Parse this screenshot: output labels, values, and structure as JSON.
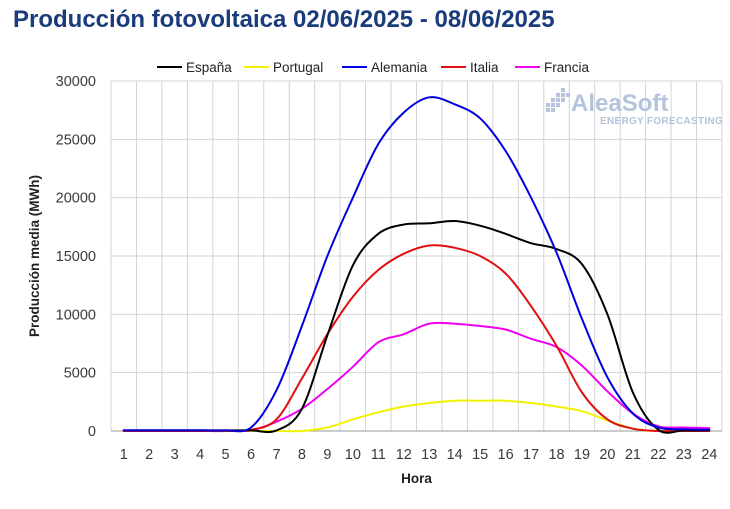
{
  "title": "Producción fotovoltaica 02/06/2025 - 08/06/2025",
  "watermark": {
    "brand": "AleaSoft",
    "tagline": "ENERGY FORECASTING"
  },
  "chart_data": {
    "type": "line",
    "xlabel": "Hora",
    "ylabel": "Producción media (MWh)",
    "x": [
      1,
      2,
      3,
      4,
      5,
      6,
      7,
      8,
      9,
      10,
      11,
      12,
      13,
      14,
      15,
      16,
      17,
      18,
      19,
      20,
      21,
      22,
      23,
      24
    ],
    "ylim": [
      0,
      30000
    ],
    "yticks": [
      0,
      5000,
      10000,
      15000,
      20000,
      25000,
      30000
    ],
    "grid": true,
    "legend_position": "top",
    "series": [
      {
        "name": "España",
        "color": "#000000",
        "values": [
          50,
          50,
          50,
          50,
          50,
          50,
          50,
          1900,
          8200,
          14200,
          16900,
          17700,
          17800,
          18000,
          17600,
          16900,
          16100,
          15600,
          14300,
          10000,
          3300,
          100,
          50,
          50
        ]
      },
      {
        "name": "Portugal",
        "color": "#f2f200",
        "values": [
          0,
          0,
          0,
          0,
          0,
          0,
          0,
          0,
          300,
          1000,
          1600,
          2100,
          2400,
          2600,
          2600,
          2600,
          2400,
          2100,
          1700,
          900,
          200,
          0,
          0,
          0
        ]
      },
      {
        "name": "Alemania",
        "color": "#0000e0",
        "values": [
          50,
          50,
          50,
          50,
          50,
          300,
          3500,
          9000,
          15000,
          20000,
          24600,
          27300,
          28600,
          28000,
          26800,
          24000,
          20000,
          15300,
          9600,
          4600,
          1500,
          300,
          150,
          100
        ]
      },
      {
        "name": "Italia",
        "color": "#e01010",
        "values": [
          0,
          0,
          0,
          0,
          0,
          100,
          1000,
          4500,
          8300,
          11500,
          13800,
          15200,
          15900,
          15700,
          15000,
          13500,
          10700,
          7300,
          3300,
          1000,
          200,
          0,
          0,
          0
        ]
      },
      {
        "name": "Francia",
        "color": "#f000f0",
        "values": [
          50,
          50,
          50,
          50,
          50,
          50,
          800,
          1900,
          3600,
          5500,
          7600,
          8300,
          9200,
          9200,
          9000,
          8700,
          7900,
          7200,
          5600,
          3400,
          1500,
          400,
          300,
          250
        ]
      }
    ]
  }
}
